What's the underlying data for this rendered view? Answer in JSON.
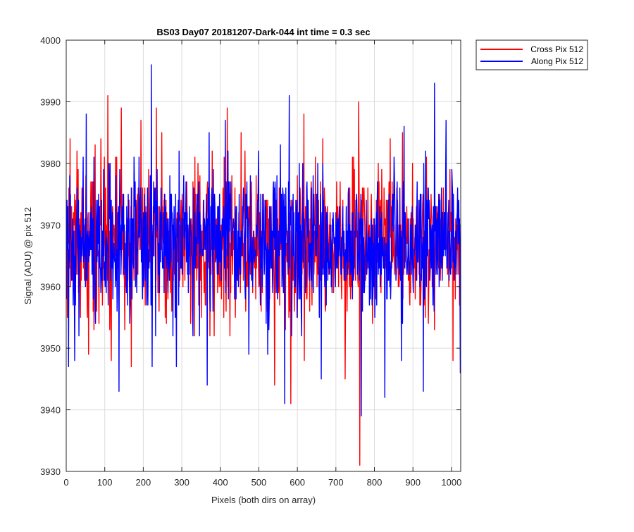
{
  "chart_data": {
    "type": "line",
    "title": "BS03 Day07 20181207-Dark-044 int time = 0.3 sec",
    "xlabel": "Pixels (both dirs on array)",
    "ylabel": "Signal (ADU) @ pix 512",
    "xlim": [
      0,
      1024
    ],
    "ylim": [
      3930,
      4000
    ],
    "xticks": [
      0,
      100,
      200,
      300,
      400,
      500,
      600,
      700,
      800,
      900,
      1000
    ],
    "yticks": [
      3930,
      3940,
      3950,
      3960,
      3970,
      3980,
      3990,
      4000
    ],
    "grid": true,
    "legend_position": "outside-top-right",
    "series": [
      {
        "name": "Cross Pix 512",
        "color": "#ff0000",
        "mean": 3967,
        "spread": 5.5,
        "n_points": 1024,
        "seed": 20181207,
        "extremes": [
          {
            "x": 2,
            "y": 3955
          },
          {
            "x": 9,
            "y": 3984
          },
          {
            "x": 57,
            "y": 3949
          },
          {
            "x": 74,
            "y": 3983
          },
          {
            "x": 84,
            "y": 3954
          },
          {
            "x": 89,
            "y": 3984
          },
          {
            "x": 107,
            "y": 3991
          },
          {
            "x": 116,
            "y": 3948
          },
          {
            "x": 142,
            "y": 3989
          },
          {
            "x": 168,
            "y": 3947
          },
          {
            "x": 193,
            "y": 3987
          },
          {
            "x": 233,
            "y": 3989
          },
          {
            "x": 247,
            "y": 3985
          },
          {
            "x": 417,
            "y": 3989
          },
          {
            "x": 453,
            "y": 3985
          },
          {
            "x": 540,
            "y": 3944
          },
          {
            "x": 582,
            "y": 3941
          },
          {
            "x": 616,
            "y": 3988
          },
          {
            "x": 617,
            "y": 3948
          },
          {
            "x": 665,
            "y": 3984
          },
          {
            "x": 723,
            "y": 3945
          },
          {
            "x": 758,
            "y": 3990
          },
          {
            "x": 761,
            "y": 3931
          },
          {
            "x": 840,
            "y": 3984
          },
          {
            "x": 872,
            "y": 3985
          },
          {
            "x": 1003,
            "y": 3948
          }
        ]
      },
      {
        "name": "Along Pix 512",
        "color": "#0000ff",
        "mean": 3967,
        "spread": 5.5,
        "n_points": 1024,
        "seed": 1207044,
        "extremes": [
          {
            "x": 5,
            "y": 3947
          },
          {
            "x": 21,
            "y": 3948
          },
          {
            "x": 51,
            "y": 3988
          },
          {
            "x": 136,
            "y": 3943
          },
          {
            "x": 220,
            "y": 3996
          },
          {
            "x": 222,
            "y": 3947
          },
          {
            "x": 285,
            "y": 3947
          },
          {
            "x": 365,
            "y": 3944
          },
          {
            "x": 370,
            "y": 3985
          },
          {
            "x": 412,
            "y": 3987
          },
          {
            "x": 473,
            "y": 3949
          },
          {
            "x": 522,
            "y": 3949
          },
          {
            "x": 555,
            "y": 3983
          },
          {
            "x": 566,
            "y": 3941
          },
          {
            "x": 578,
            "y": 3991
          },
          {
            "x": 661,
            "y": 3945
          },
          {
            "x": 765,
            "y": 3939
          },
          {
            "x": 826,
            "y": 3942
          },
          {
            "x": 869,
            "y": 3948
          },
          {
            "x": 876,
            "y": 3986
          },
          {
            "x": 926,
            "y": 3943
          },
          {
            "x": 955,
            "y": 3993
          },
          {
            "x": 985,
            "y": 3987
          },
          {
            "x": 1022,
            "y": 3946
          }
        ]
      }
    ]
  }
}
